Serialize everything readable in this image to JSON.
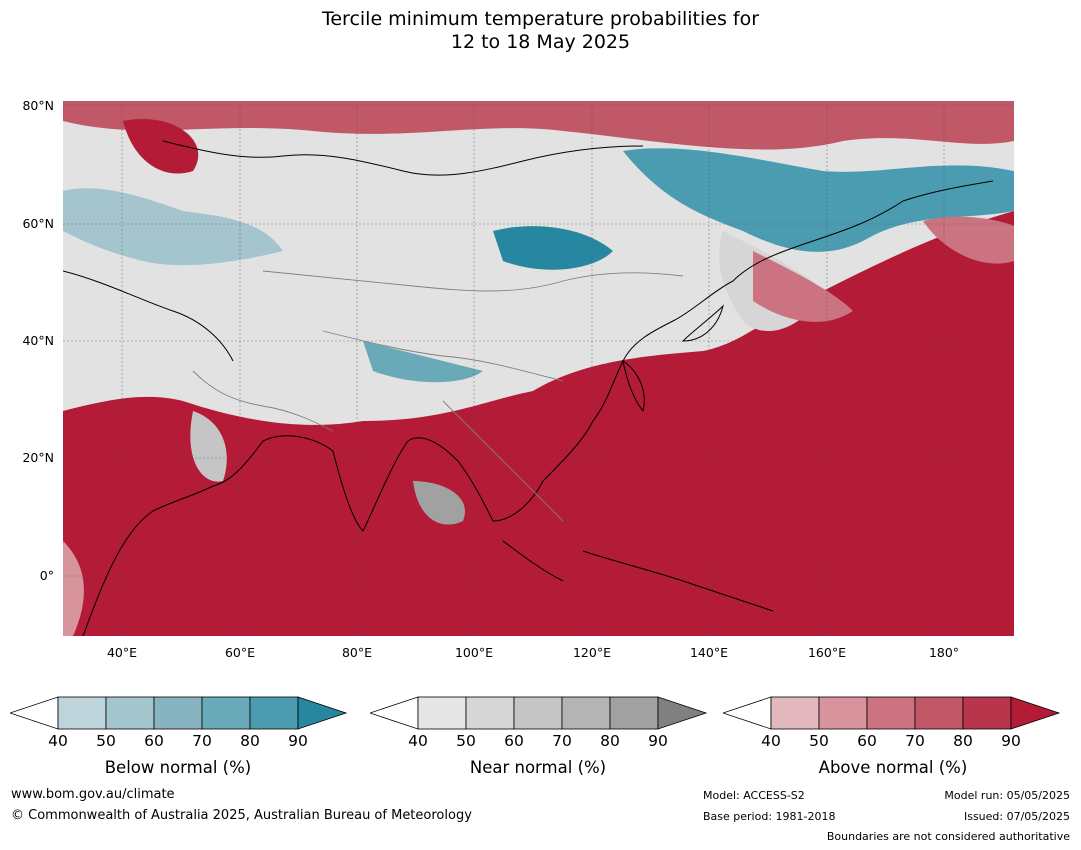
{
  "title_line1": "Tercile minimum temperature probabilities for",
  "title_line2": "12 to 18 May 2025",
  "lat_labels": [
    "80°N",
    "60°N",
    "40°N",
    "20°N",
    "0°"
  ],
  "lon_labels": [
    "40°E",
    "60°E",
    "80°E",
    "100°E",
    "120°E",
    "140°E",
    "160°E",
    "180°"
  ],
  "colorbars": [
    {
      "title": "Below normal (%)",
      "ticks": [
        "40",
        "50",
        "60",
        "70",
        "80",
        "90"
      ],
      "colors": [
        "#bed4db",
        "#a5c5ce",
        "#87b4c0",
        "#6aaab8",
        "#4b9cb0",
        "#2887a0"
      ]
    },
    {
      "title": "Near normal (%)",
      "ticks": [
        "40",
        "50",
        "60",
        "70",
        "80",
        "90"
      ],
      "colors": [
        "#e6e6e6",
        "#d6d6d6",
        "#c5c5c5",
        "#b4b4b4",
        "#a1a1a1",
        "#808080"
      ]
    },
    {
      "title": "Above normal (%)",
      "ticks": [
        "40",
        "50",
        "60",
        "70",
        "80",
        "90"
      ],
      "colors": [
        "#e2b7bd",
        "#d7949c",
        "#cb7380",
        "#c15868",
        "#b8354b",
        "#b31b37"
      ]
    }
  ],
  "footer": {
    "url": "www.bom.gov.au/climate",
    "copyright": "© Commonwealth of Australia 2025, Australian Bureau of Meteorology",
    "model": "Model: ACCESS-S2",
    "base_period": "Base period: 1981-2018",
    "model_run": "Model run: 05/05/2025",
    "issued": "Issued: 07/05/2025",
    "disclaimer": "Boundaries are not considered authoritative"
  }
}
